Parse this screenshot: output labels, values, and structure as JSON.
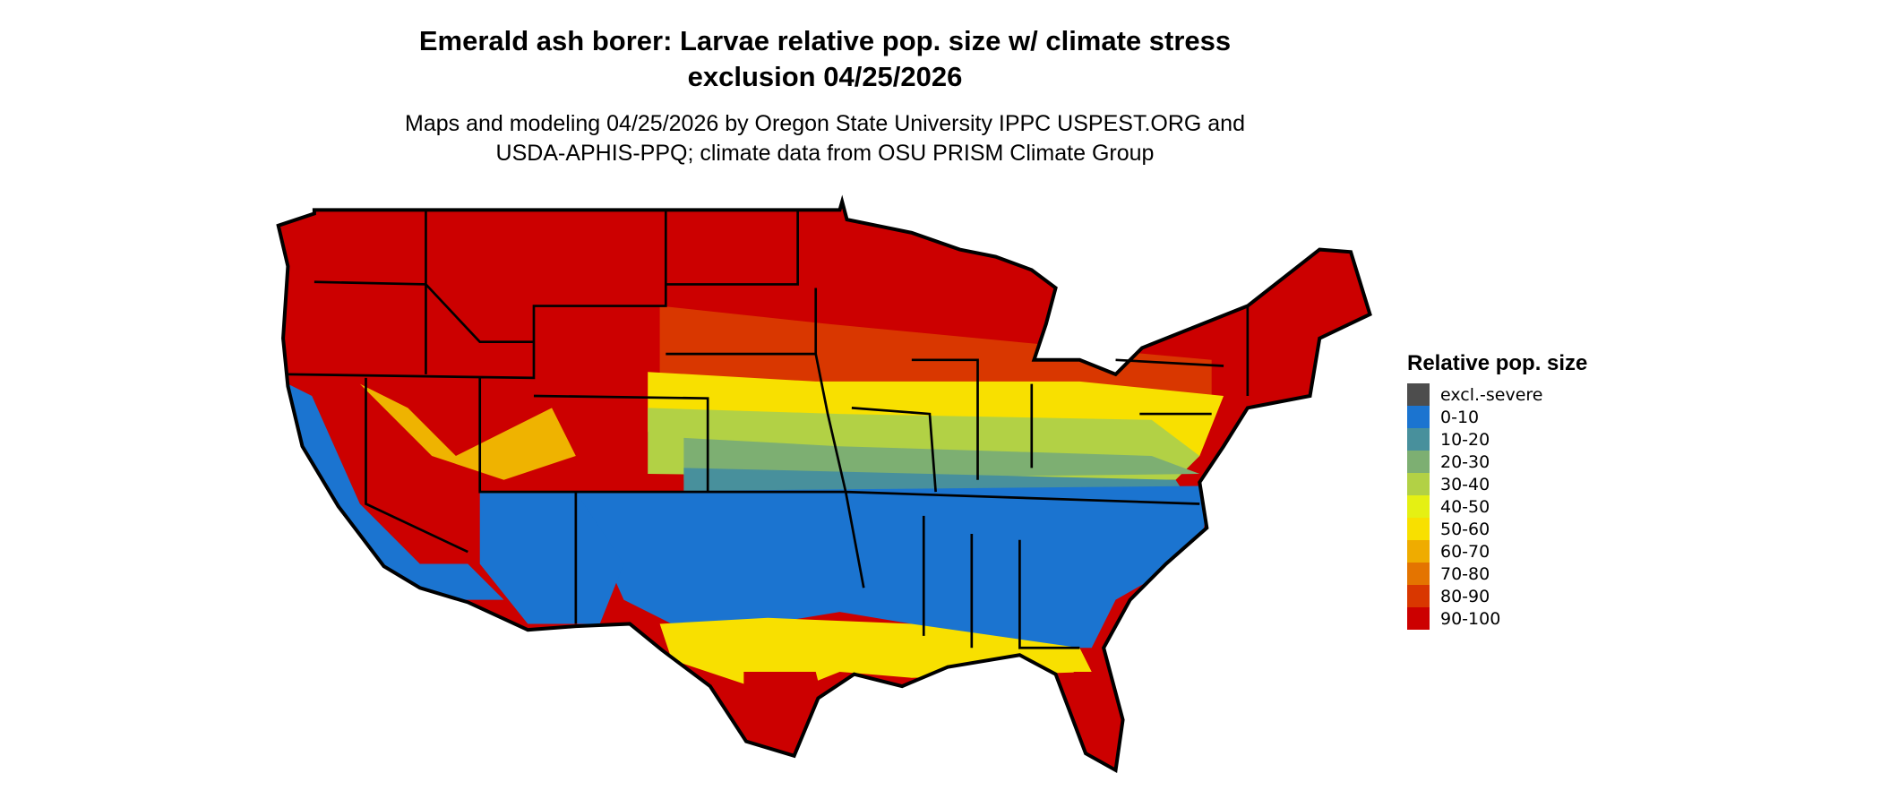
{
  "title": {
    "line1": "Emerald ash borer: Larvae relative pop. size w/ climate stress",
    "line2": "exclusion 04/25/2026"
  },
  "subtitle": {
    "line1": "Maps and modeling 04/25/2026 by Oregon State University IPPC USPEST.ORG and",
    "line2": "USDA-APHIS-PPQ; climate data from OSU PRISM Climate Group"
  },
  "map": {
    "region": "Contiguous United States",
    "border_color": "#000000"
  },
  "legend": {
    "title": "Relative pop. size",
    "items": [
      {
        "label": "excl.-severe",
        "color": "#4d4d4d"
      },
      {
        "label": "0-10",
        "color": "#1b74d0"
      },
      {
        "label": "10-20",
        "color": "#48909c"
      },
      {
        "label": "20-30",
        "color": "#7daf72"
      },
      {
        "label": "30-40",
        "color": "#b2d145"
      },
      {
        "label": "40-50",
        "color": "#e5f013"
      },
      {
        "label": "50-60",
        "color": "#f8e000"
      },
      {
        "label": "60-70",
        "color": "#efac00"
      },
      {
        "label": "70-80",
        "color": "#e47400"
      },
      {
        "label": "80-90",
        "color": "#d93700"
      },
      {
        "label": "90-100",
        "color": "#cc0000"
      }
    ]
  }
}
